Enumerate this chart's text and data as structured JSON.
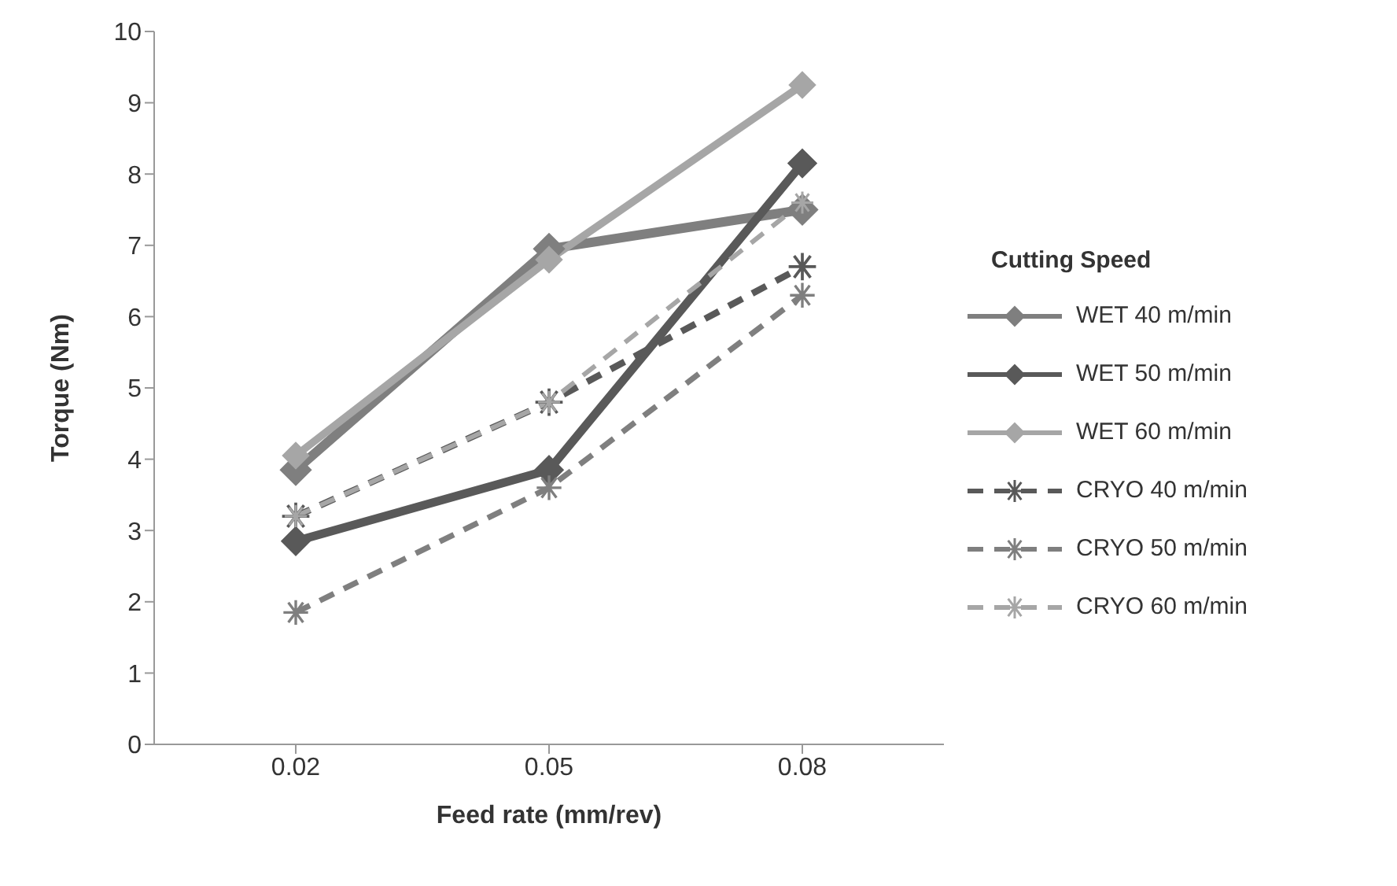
{
  "chart_data": {
    "type": "line",
    "xlabel": "Feed rate (mm/rev)",
    "ylabel": "Torque (Nm)",
    "legend_title": "Cutting Speed",
    "categories": [
      "0.02",
      "0.05",
      "0.08"
    ],
    "ylim": [
      0,
      10
    ],
    "yticks": [
      0,
      1,
      2,
      3,
      4,
      5,
      6,
      7,
      8,
      9,
      10
    ],
    "grid": false,
    "legend": "right",
    "series": [
      {
        "name": "WET 40 m/min",
        "color": "#7f7f7f",
        "values": [
          3.85,
          6.95,
          7.5
        ],
        "marker": "diamond",
        "line_style": "solid"
      },
      {
        "name": "WET 50 m/min",
        "color": "#595959",
        "values": [
          2.85,
          3.85,
          8.15
        ],
        "marker": "diamond",
        "line_style": "solid"
      },
      {
        "name": "WET 60 m/min",
        "color": "#a6a6a6",
        "values": [
          4.05,
          6.8,
          9.25
        ],
        "marker": "diamond",
        "line_style": "solid"
      },
      {
        "name": "CRYO 40 m/min",
        "color": "#595959",
        "values": [
          3.2,
          4.8,
          6.7
        ],
        "marker": "cross",
        "line_style": "dashed"
      },
      {
        "name": "CRYO 50 m/min",
        "color": "#7f7f7f",
        "values": [
          1.85,
          3.6,
          6.3
        ],
        "marker": "cross",
        "line_style": "dashed"
      },
      {
        "name": "CRYO 60 m/min",
        "color": "#a6a6a6",
        "values": [
          3.2,
          4.8,
          7.6
        ],
        "marker": "cross",
        "line_style": "dashed"
      }
    ]
  }
}
